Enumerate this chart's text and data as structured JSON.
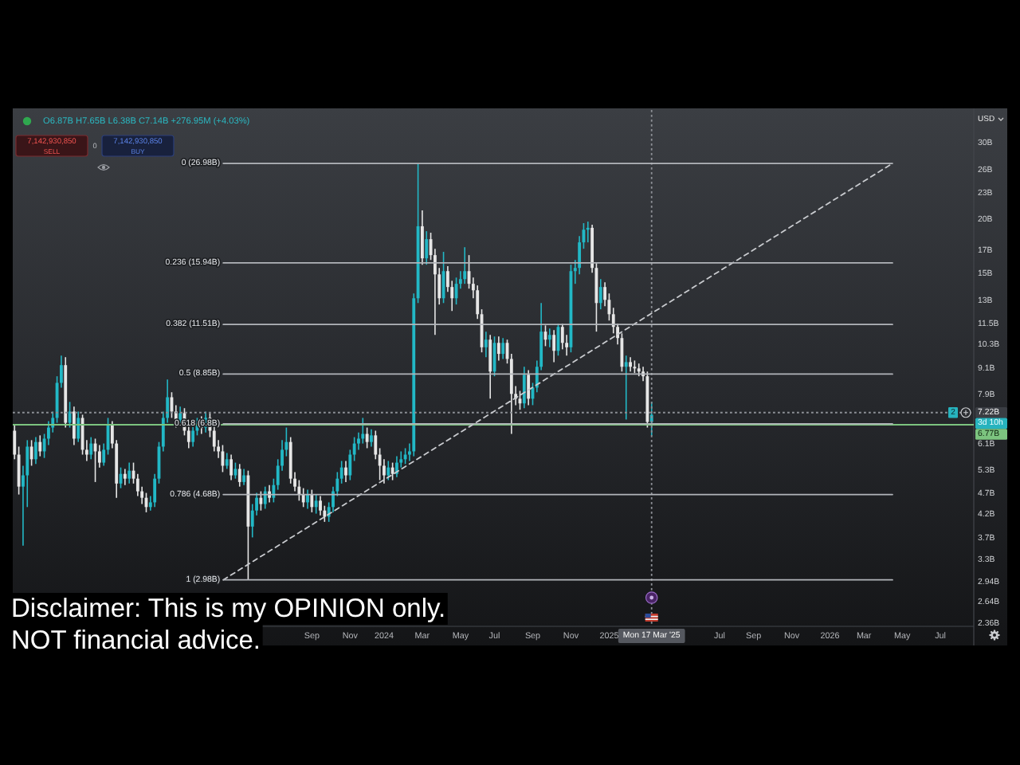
{
  "chart_data": {
    "type": "candlestick",
    "log": true,
    "x": [
      "2022-05-02",
      "2022-05-09",
      "2022-05-16",
      "2022-05-23",
      "2022-05-30",
      "2022-06-06",
      "2022-06-13",
      "2022-06-20",
      "2022-06-27",
      "2022-07-04",
      "2022-07-11",
      "2022-07-18",
      "2022-07-25",
      "2022-08-01",
      "2022-08-08",
      "2022-08-15",
      "2022-08-22",
      "2022-08-29",
      "2022-09-05",
      "2022-09-12",
      "2022-09-19",
      "2022-09-26",
      "2022-10-03",
      "2022-10-10",
      "2022-10-17",
      "2022-10-24",
      "2022-10-31",
      "2022-11-07",
      "2022-11-14",
      "2022-11-21",
      "2022-11-28",
      "2022-12-05",
      "2022-12-12",
      "2022-12-19",
      "2022-12-26",
      "2023-01-02",
      "2023-01-09",
      "2023-01-16",
      "2023-01-23",
      "2023-01-30",
      "2023-02-06",
      "2023-02-13",
      "2023-02-20",
      "2023-02-27",
      "2023-03-06",
      "2023-03-13",
      "2023-03-20",
      "2023-03-27",
      "2023-04-03",
      "2023-04-10",
      "2023-04-17",
      "2023-04-24",
      "2023-05-01",
      "2023-05-08",
      "2023-05-15",
      "2023-05-22",
      "2023-05-29",
      "2023-06-05",
      "2023-06-12",
      "2023-06-19",
      "2023-06-26",
      "2023-07-03",
      "2023-07-10",
      "2023-07-17",
      "2023-07-24",
      "2023-07-31",
      "2023-08-07",
      "2023-08-14",
      "2023-08-21",
      "2023-08-28",
      "2023-09-04",
      "2023-09-11",
      "2023-09-18",
      "2023-09-25",
      "2023-10-02",
      "2023-10-09",
      "2023-10-16",
      "2023-10-23",
      "2023-10-30",
      "2023-11-06",
      "2023-11-13",
      "2023-11-20",
      "2023-11-27",
      "2023-12-04",
      "2023-12-11",
      "2023-12-18",
      "2023-12-25",
      "2024-01-01",
      "2024-01-08",
      "2024-01-15",
      "2024-01-22",
      "2024-01-29",
      "2024-02-05",
      "2024-02-12",
      "2024-02-19",
      "2024-02-26",
      "2024-03-04",
      "2024-03-11",
      "2024-03-18",
      "2024-03-25",
      "2024-04-01",
      "2024-04-08",
      "2024-04-15",
      "2024-04-22",
      "2024-04-29",
      "2024-05-06",
      "2024-05-13",
      "2024-05-20",
      "2024-05-27",
      "2024-06-03",
      "2024-06-10",
      "2024-06-17",
      "2024-06-24",
      "2024-07-01",
      "2024-07-08",
      "2024-07-15",
      "2024-07-22",
      "2024-07-29",
      "2024-08-05",
      "2024-08-12",
      "2024-08-19",
      "2024-08-26",
      "2024-09-02",
      "2024-09-09",
      "2024-09-16",
      "2024-09-23",
      "2024-09-30",
      "2024-10-07",
      "2024-10-14",
      "2024-10-21",
      "2024-10-28",
      "2024-11-04",
      "2024-11-11",
      "2024-11-18",
      "2024-11-25",
      "2024-12-02",
      "2024-12-09",
      "2024-12-16",
      "2024-12-23",
      "2024-12-30",
      "2025-01-06",
      "2025-01-13",
      "2025-01-20",
      "2025-01-27",
      "2025-02-03",
      "2025-02-10",
      "2025-02-17",
      "2025-02-24",
      "2025-03-03",
      "2025-03-10",
      "2025-03-17"
    ],
    "ohlc": [
      [
        6.56,
        6.79,
        5.64,
        5.78
      ],
      [
        5.78,
        6.03,
        4.68,
        4.88
      ],
      [
        4.88,
        5.45,
        3.57,
        5.18
      ],
      [
        5.18,
        6.24,
        4.38,
        6.03
      ],
      [
        6.03,
        6.24,
        5.45,
        5.64
      ],
      [
        5.64,
        6.34,
        5.5,
        6.18
      ],
      [
        6.18,
        6.4,
        5.73,
        5.88
      ],
      [
        5.88,
        6.45,
        5.68,
        6.29
      ],
      [
        6.29,
        6.9,
        6.08,
        6.67
      ],
      [
        6.67,
        7.26,
        6.5,
        7.02
      ],
      [
        7.02,
        8.75,
        6.84,
        8.45
      ],
      [
        8.45,
        9.76,
        8.24,
        9.28
      ],
      [
        9.28,
        9.68,
        6.67,
        6.84
      ],
      [
        6.84,
        7.64,
        6.67,
        7.26
      ],
      [
        7.26,
        7.45,
        6.08,
        6.29
      ],
      [
        6.29,
        7.26,
        6.18,
        7.02
      ],
      [
        7.02,
        7.14,
        5.78,
        5.93
      ],
      [
        5.93,
        6.24,
        5.59,
        5.78
      ],
      [
        5.78,
        6.34,
        5.64,
        6.13
      ],
      [
        6.13,
        6.29,
        5.0,
        5.88
      ],
      [
        5.88,
        6.08,
        5.4,
        5.54
      ],
      [
        5.54,
        6.13,
        5.45,
        5.93
      ],
      [
        5.93,
        7.02,
        5.78,
        6.79
      ],
      [
        6.79,
        6.9,
        5.98,
        6.13
      ],
      [
        6.13,
        6.24,
        4.6,
        4.96
      ],
      [
        4.96,
        5.4,
        4.84,
        5.22
      ],
      [
        5.22,
        5.36,
        4.92,
        5.09
      ],
      [
        5.09,
        5.54,
        4.96,
        5.31
      ],
      [
        5.31,
        5.54,
        4.96,
        5.09
      ],
      [
        5.09,
        5.22,
        4.64,
        4.76
      ],
      [
        4.76,
        4.88,
        4.45,
        4.6
      ],
      [
        4.6,
        4.72,
        4.26,
        4.38
      ],
      [
        4.38,
        4.64,
        4.3,
        4.49
      ],
      [
        4.49,
        5.22,
        4.38,
        5.09
      ],
      [
        5.09,
        6.18,
        4.96,
        6.03
      ],
      [
        6.03,
        7.26,
        5.88,
        7.02
      ],
      [
        7.02,
        8.6,
        6.84,
        7.83
      ],
      [
        7.83,
        8.04,
        7.02,
        7.26
      ],
      [
        7.26,
        7.51,
        6.67,
        6.9
      ],
      [
        6.9,
        7.45,
        6.73,
        7.2
      ],
      [
        7.2,
        7.39,
        6.4,
        6.56
      ],
      [
        6.56,
        6.73,
        5.98,
        6.18
      ],
      [
        6.18,
        6.79,
        6.03,
        6.56
      ],
      [
        6.56,
        7.02,
        6.4,
        6.84
      ],
      [
        6.84,
        7.08,
        6.45,
        6.67
      ],
      [
        6.67,
        7.26,
        6.5,
        7.02
      ],
      [
        7.02,
        7.2,
        6.34,
        6.56
      ],
      [
        6.56,
        6.79,
        5.88,
        6.03
      ],
      [
        6.03,
        6.24,
        5.68,
        5.88
      ],
      [
        5.88,
        6.08,
        5.27,
        5.45
      ],
      [
        5.45,
        5.83,
        5.36,
        5.64
      ],
      [
        5.64,
        5.78,
        5.05,
        5.18
      ],
      [
        5.18,
        5.54,
        5.09,
        5.36
      ],
      [
        5.36,
        5.5,
        4.88,
        5.0
      ],
      [
        5.0,
        5.36,
        4.92,
        5.18
      ],
      [
        5.18,
        5.31,
        2.98,
        3.95
      ],
      [
        3.95,
        4.45,
        3.73,
        4.3
      ],
      [
        4.3,
        4.72,
        4.19,
        4.6
      ],
      [
        4.6,
        4.76,
        4.3,
        4.45
      ],
      [
        4.45,
        4.88,
        4.34,
        4.76
      ],
      [
        4.76,
        4.92,
        4.49,
        4.6
      ],
      [
        4.6,
        5.09,
        4.49,
        4.92
      ],
      [
        4.92,
        5.64,
        4.8,
        5.45
      ],
      [
        5.45,
        6.24,
        5.31,
        5.93
      ],
      [
        5.93,
        6.67,
        5.73,
        6.18
      ],
      [
        6.18,
        6.34,
        4.96,
        5.09
      ],
      [
        5.09,
        5.27,
        4.76,
        4.88
      ],
      [
        4.88,
        5.05,
        4.53,
        4.68
      ],
      [
        4.68,
        4.84,
        4.38,
        4.49
      ],
      [
        4.49,
        4.8,
        4.34,
        4.68
      ],
      [
        4.68,
        4.8,
        4.26,
        4.38
      ],
      [
        4.38,
        4.68,
        4.23,
        4.53
      ],
      [
        4.53,
        4.64,
        4.19,
        4.3
      ],
      [
        4.3,
        4.41,
        4.05,
        4.16
      ],
      [
        4.16,
        4.49,
        4.05,
        4.38
      ],
      [
        4.38,
        4.88,
        4.26,
        4.76
      ],
      [
        4.76,
        5.27,
        4.64,
        5.09
      ],
      [
        5.09,
        5.59,
        4.96,
        5.4
      ],
      [
        5.4,
        5.59,
        5.0,
        5.18
      ],
      [
        5.18,
        5.93,
        5.05,
        5.78
      ],
      [
        5.78,
        6.34,
        5.59,
        6.13
      ],
      [
        6.13,
        6.5,
        5.93,
        6.29
      ],
      [
        6.29,
        7.02,
        6.13,
        6.45
      ],
      [
        6.45,
        6.67,
        5.98,
        6.18
      ],
      [
        6.18,
        6.61,
        6.03,
        6.4
      ],
      [
        6.4,
        6.56,
        5.64,
        5.78
      ],
      [
        5.78,
        5.98,
        5.05,
        5.45
      ],
      [
        5.45,
        5.64,
        4.96,
        5.18
      ],
      [
        5.18,
        5.59,
        5.05,
        5.4
      ],
      [
        5.4,
        5.54,
        5.05,
        5.22
      ],
      [
        5.22,
        5.73,
        5.13,
        5.54
      ],
      [
        5.54,
        5.88,
        5.4,
        5.64
      ],
      [
        5.64,
        5.98,
        5.5,
        5.78
      ],
      [
        5.78,
        6.13,
        5.59,
        5.88
      ],
      [
        5.88,
        13.56,
        5.73,
        13.22
      ],
      [
        13.22,
        26.98,
        12.89,
        19.35
      ],
      [
        19.35,
        21.04,
        15.79,
        16.33
      ],
      [
        16.33,
        18.85,
        15.79,
        18.07
      ],
      [
        18.07,
        18.7,
        16.19,
        16.61
      ],
      [
        16.61,
        17.18,
        10.89,
        15.0
      ],
      [
        15.0,
        15.52,
        12.79,
        13.22
      ],
      [
        13.22,
        16.9,
        12.89,
        15.26
      ],
      [
        15.26,
        15.66,
        13.68,
        14.03
      ],
      [
        14.03,
        14.5,
        12.36,
        13.22
      ],
      [
        13.22,
        14.75,
        12.79,
        14.27
      ],
      [
        14.27,
        15.26,
        13.91,
        14.63
      ],
      [
        14.63,
        17.32,
        14.27,
        15.26
      ],
      [
        15.26,
        16.61,
        13.91,
        14.27
      ],
      [
        14.27,
        14.75,
        13.22,
        13.79
      ],
      [
        13.79,
        14.15,
        11.85,
        12.15
      ],
      [
        12.15,
        12.47,
        9.93,
        10.2
      ],
      [
        10.2,
        11.08,
        9.68,
        10.62
      ],
      [
        10.62,
        10.89,
        7.77,
        8.97
      ],
      [
        8.97,
        10.8,
        8.75,
        10.44
      ],
      [
        10.44,
        10.8,
        9.51,
        9.85
      ],
      [
        9.85,
        10.71,
        9.59,
        10.44
      ],
      [
        10.44,
        10.62,
        9.36,
        9.59
      ],
      [
        9.59,
        9.85,
        6.45,
        7.97
      ],
      [
        7.97,
        8.31,
        7.51,
        7.77
      ],
      [
        7.77,
        8.1,
        7.33,
        7.58
      ],
      [
        7.58,
        9.2,
        7.39,
        8.82
      ],
      [
        8.82,
        9.04,
        7.51,
        7.77
      ],
      [
        7.77,
        8.45,
        7.51,
        8.24
      ],
      [
        8.24,
        9.51,
        8.04,
        9.2
      ],
      [
        9.2,
        12.89,
        9.04,
        11.08
      ],
      [
        11.08,
        11.45,
        10.26,
        10.62
      ],
      [
        10.62,
        11.27,
        10.2,
        10.89
      ],
      [
        10.89,
        11.17,
        9.43,
        10.01
      ],
      [
        10.01,
        11.55,
        9.76,
        11.36
      ],
      [
        11.36,
        11.55,
        10.09,
        10.44
      ],
      [
        10.44,
        10.89,
        9.76,
        10.2
      ],
      [
        10.2,
        15.79,
        9.93,
        15.26
      ],
      [
        15.26,
        16.19,
        14.27,
        15.52
      ],
      [
        15.52,
        18.37,
        15.0,
        17.77
      ],
      [
        17.77,
        19.67,
        17.18,
        19.0
      ],
      [
        19.0,
        19.83,
        17.77,
        19.19
      ],
      [
        19.19,
        19.51,
        15.13,
        15.52
      ],
      [
        15.52,
        15.92,
        11.08,
        12.89
      ],
      [
        12.89,
        14.63,
        12.47,
        14.03
      ],
      [
        14.03,
        14.39,
        12.68,
        13.11
      ],
      [
        13.11,
        13.56,
        11.75,
        12.15
      ],
      [
        12.15,
        12.57,
        10.98,
        11.36
      ],
      [
        11.36,
        11.55,
        10.35,
        10.71
      ],
      [
        10.71,
        10.98,
        8.97,
        9.2
      ],
      [
        9.2,
        9.76,
        6.96,
        9.43
      ],
      [
        9.43,
        9.68,
        8.97,
        9.2
      ],
      [
        9.2,
        9.51,
        8.9,
        9.12
      ],
      [
        9.12,
        9.36,
        8.75,
        8.97
      ],
      [
        8.97,
        9.2,
        8.53,
        8.75
      ],
      [
        8.75,
        8.97,
        6.67,
        6.87
      ],
      [
        6.87,
        7.65,
        6.38,
        7.14
      ]
    ],
    "colors": [
      "#e6e6e6",
      "#e6e6e6",
      "#22b8c6",
      "#22b8c6",
      "#e6e6e6",
      "#22b8c6",
      "#e6e6e6",
      "#22b8c6",
      "#22b8c6",
      "#22b8c6",
      "#22b8c6",
      "#22b8c6",
      "#e6e6e6",
      "#22b8c6",
      "#e6e6e6",
      "#22b8c6",
      "#e6e6e6",
      "#e6e6e6",
      "#22b8c6",
      "#e6e6e6",
      "#e6e6e6",
      "#22b8c6",
      "#22b8c6",
      "#e6e6e6",
      "#e6e6e6",
      "#22b8c6",
      "#e6e6e6",
      "#22b8c6",
      "#e6e6e6",
      "#e6e6e6",
      "#e6e6e6",
      "#e6e6e6",
      "#22b8c6",
      "#22b8c6",
      "#22b8c6",
      "#22b8c6",
      "#22b8c6",
      "#e6e6e6",
      "#e6e6e6",
      "#22b8c6",
      "#e6e6e6",
      "#e6e6e6",
      "#22b8c6",
      "#22b8c6",
      "#e6e6e6",
      "#22b8c6",
      "#e6e6e6",
      "#e6e6e6",
      "#e6e6e6",
      "#e6e6e6",
      "#22b8c6",
      "#e6e6e6",
      "#22b8c6",
      "#e6e6e6",
      "#22b8c6",
      "#e6e6e6",
      "#22b8c6",
      "#22b8c6",
      "#e6e6e6",
      "#22b8c6",
      "#e6e6e6",
      "#22b8c6",
      "#22b8c6",
      "#22b8c6",
      "#22b8c6",
      "#e6e6e6",
      "#e6e6e6",
      "#e6e6e6",
      "#e6e6e6",
      "#22b8c6",
      "#e6e6e6",
      "#22b8c6",
      "#e6e6e6",
      "#e6e6e6",
      "#22b8c6",
      "#22b8c6",
      "#22b8c6",
      "#22b8c6",
      "#e6e6e6",
      "#22b8c6",
      "#22b8c6",
      "#22b8c6",
      "#22b8c6",
      "#e6e6e6",
      "#22b8c6",
      "#e6e6e6",
      "#e6e6e6",
      "#e6e6e6",
      "#22b8c6",
      "#e6e6e6",
      "#22b8c6",
      "#22b8c6",
      "#22b8c6",
      "#22b8c6",
      "#22b8c6",
      "#22b8c6",
      "#e6e6e6",
      "#22b8c6",
      "#e6e6e6",
      "#e6e6e6",
      "#e6e6e6",
      "#22b8c6",
      "#e6e6e6",
      "#e6e6e6",
      "#22b8c6",
      "#22b8c6",
      "#22b8c6",
      "#e6e6e6",
      "#e6e6e6",
      "#e6e6e6",
      "#e6e6e6",
      "#22b8c6",
      "#e6e6e6",
      "#22b8c6",
      "#e6e6e6",
      "#22b8c6",
      "#e6e6e6",
      "#e6e6e6",
      "#e6e6e6",
      "#e6e6e6",
      "#22b8c6",
      "#e6e6e6",
      "#22b8c6",
      "#22b8c6",
      "#22b8c6",
      "#e6e6e6",
      "#22b8c6",
      "#e6e6e6",
      "#22b8c6",
      "#e6e6e6",
      "#e6e6e6",
      "#22b8c6",
      "#22b8c6",
      "#22b8c6",
      "#22b8c6",
      "#22b8c6",
      "#e6e6e6",
      "#e6e6e6",
      "#22b8c6",
      "#e6e6e6",
      "#e6e6e6",
      "#e6e6e6",
      "#e6e6e6",
      "#e6e6e6",
      "#22b8c6",
      "#e6e6e6",
      "#e6e6e6",
      "#e6e6e6",
      "#e6e6e6",
      "#e6e6e6",
      "#22b8c6"
    ],
    "series": [
      {
        "type": "line",
        "x": [
          "2023-04-11",
          "2026-04-18"
        ],
        "values": [
          2.98,
          26.98
        ],
        "color": "#c9cbcf",
        "line_style": "dashed"
      },
      {
        "type": "line",
        "name": "0 (26.98B)",
        "x": [
          "2023-04-11",
          "2026-04-18"
        ],
        "values": [
          26.98,
          26.98
        ],
        "color": "#b2b5ba"
      },
      {
        "type": "line",
        "name": "0.236 (15.94B)",
        "x": [
          "2023-04-11",
          "2026-04-18"
        ],
        "values": [
          15.94,
          15.94
        ],
        "color": "#b2b5ba"
      },
      {
        "type": "line",
        "name": "0.382 (11.51B)",
        "x": [
          "2023-04-11",
          "2026-04-18"
        ],
        "values": [
          11.51,
          11.51
        ],
        "color": "#b2b5ba"
      },
      {
        "type": "line",
        "name": "0.5 (8.85B)",
        "x": [
          "2023-04-11",
          "2026-04-18"
        ],
        "values": [
          8.85,
          8.85
        ],
        "color": "#b2b5ba"
      },
      {
        "type": "line",
        "name": "0.618 (6.8B)",
        "x": [
          "2023-04-11",
          "2026-04-18"
        ],
        "values": [
          6.8,
          6.8
        ],
        "color": "#b2b5ba"
      },
      {
        "type": "line",
        "name": "0.786 (4.68B)",
        "x": [
          "2023-04-11",
          "2026-04-18"
        ],
        "values": [
          4.68,
          4.68
        ],
        "color": "#b2b5ba"
      },
      {
        "type": "line",
        "name": "1 (2.98B)",
        "x": [
          "2023-04-11",
          "2026-04-18"
        ],
        "values": [
          2.98,
          2.98
        ],
        "color": "#b2b5ba"
      }
    ],
    "xlim": [
      "2022-04-29",
      "2026-08-30"
    ],
    "xticks": [
      {
        "value": "2023-09-04",
        "label": "Sep"
      },
      {
        "value": "2023-11-06",
        "label": "Nov"
      },
      {
        "value": "2024-01-01",
        "label": "2024"
      },
      {
        "value": "2024-03-04",
        "label": "Mar"
      },
      {
        "value": "2024-05-06",
        "label": "May"
      },
      {
        "value": "2024-07-01",
        "label": "Jul"
      },
      {
        "value": "2024-09-02",
        "label": "Sep"
      },
      {
        "value": "2024-11-04",
        "label": "Nov"
      },
      {
        "value": "2025-01-06",
        "label": "2025"
      },
      {
        "value": "2025-07-07",
        "label": "Jul"
      },
      {
        "value": "2025-09-01",
        "label": "Sep"
      },
      {
        "value": "2025-11-03",
        "label": "Nov"
      },
      {
        "value": "2026-01-05",
        "label": "2026"
      },
      {
        "value": "2026-03-02",
        "label": "Mar"
      },
      {
        "value": "2026-05-04",
        "label": "May"
      },
      {
        "value": "2026-07-06",
        "label": "Jul"
      }
    ],
    "ylim": [
      2.33,
      35.8
    ],
    "yticks": [
      {
        "value": 30,
        "label": "30B"
      },
      {
        "value": 26,
        "label": "26B"
      },
      {
        "value": 23,
        "label": "23B"
      },
      {
        "value": 20,
        "label": "20B"
      },
      {
        "value": 17,
        "label": "17B"
      },
      {
        "value": 15,
        "label": "15B"
      },
      {
        "value": 13,
        "label": "13B"
      },
      {
        "value": 11.5,
        "label": "11.5B"
      },
      {
        "value": 10.3,
        "label": "10.3B"
      },
      {
        "value": 9.1,
        "label": "9.1B"
      },
      {
        "value": 7.9,
        "label": "7.9B"
      },
      {
        "value": 6.1,
        "label": "6.1B"
      },
      {
        "value": 5.3,
        "label": "5.3B"
      },
      {
        "value": 4.7,
        "label": "4.7B"
      },
      {
        "value": 4.2,
        "label": "4.2B"
      },
      {
        "value": 3.7,
        "label": "3.7B"
      },
      {
        "value": 3.3,
        "label": "3.3B"
      },
      {
        "value": 2.94,
        "label": "2.94B"
      },
      {
        "value": 2.64,
        "label": "2.64B"
      },
      {
        "value": 2.36,
        "label": "2.36B"
      }
    ],
    "ref_lines": [
      {
        "axis": "y",
        "value": 6.77,
        "label": "6.77B",
        "color": "#7cc47f"
      },
      {
        "axis": "y",
        "value": 7.22,
        "label": "7.22B",
        "color": "#8d9096",
        "line_style": "dotted"
      },
      {
        "axis": "x",
        "value": "2025-03-17",
        "label": "Mon 17 Mar '25",
        "color": "#8d9096",
        "line_style": "dotted"
      }
    ],
    "annotations": [
      "O6.87B H7.65B L6.38B C7.14B +276.95M (+4.03%)",
      "7,142,930,850",
      "SELL",
      "0",
      "7,142,930,850",
      "BUY",
      "USD",
      "3d 10h",
      "2",
      "Disclaimer: This is my OPINION only.",
      "NOT financial advice."
    ]
  }
}
